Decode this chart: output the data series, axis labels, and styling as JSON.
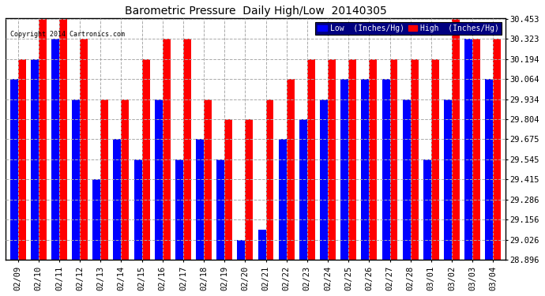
{
  "title": "Barometric Pressure  Daily High/Low  20140305",
  "copyright": "Copyright 2014 Cartronics.com",
  "legend_low": "Low  (Inches/Hg)",
  "legend_high": "High  (Inches/Hg)",
  "dates": [
    "02/09",
    "02/10",
    "02/11",
    "02/12",
    "02/13",
    "02/14",
    "02/15",
    "02/16",
    "02/17",
    "02/18",
    "02/19",
    "02/20",
    "02/21",
    "02/22",
    "02/23",
    "02/24",
    "02/25",
    "02/26",
    "02/27",
    "02/28",
    "03/01",
    "03/02",
    "03/03",
    "03/04"
  ],
  "low_values": [
    30.064,
    30.194,
    30.323,
    29.934,
    29.415,
    29.675,
    29.545,
    29.934,
    29.545,
    29.675,
    29.545,
    29.026,
    29.09,
    29.675,
    29.804,
    29.934,
    30.064,
    30.064,
    30.064,
    29.934,
    29.545,
    29.934,
    30.323,
    30.064
  ],
  "high_values": [
    30.194,
    30.453,
    30.453,
    30.323,
    29.934,
    29.934,
    30.194,
    30.323,
    30.323,
    29.934,
    29.804,
    29.804,
    29.934,
    30.064,
    30.194,
    30.194,
    30.194,
    30.194,
    30.194,
    30.194,
    30.194,
    30.453,
    30.323,
    30.323
  ],
  "ylim_min": 28.896,
  "ylim_max": 30.453,
  "yticks": [
    28.896,
    29.026,
    29.156,
    29.286,
    29.415,
    29.545,
    29.675,
    29.804,
    29.934,
    30.064,
    30.194,
    30.323,
    30.453
  ],
  "low_color": "#0000ff",
  "high_color": "#ff0000",
  "bg_color": "#ffffff",
  "grid_color": "#aaaaaa",
  "title_color": "#000000",
  "bar_width": 0.38,
  "figsize": [
    6.9,
    3.75
  ],
  "dpi": 100
}
